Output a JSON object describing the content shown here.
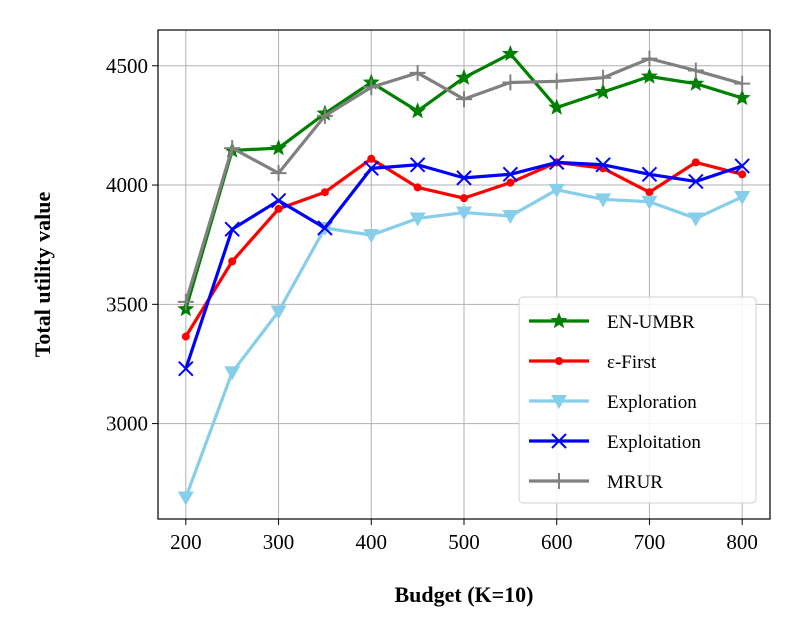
{
  "chart_data": {
    "type": "line",
    "title": "",
    "xlabel": "Budget (K=10)",
    "ylabel": "Total utility value",
    "xlim": [
      170,
      830
    ],
    "ylim": [
      2600,
      4650
    ],
    "xticks": [
      200,
      300,
      400,
      500,
      600,
      700,
      800
    ],
    "yticks": [
      3000,
      3500,
      4000,
      4500
    ],
    "grid": true,
    "legend_position": "lower-right",
    "x": [
      200,
      250,
      300,
      350,
      400,
      450,
      500,
      550,
      600,
      650,
      700,
      750,
      800
    ],
    "series": [
      {
        "name": "EN-UMBR",
        "color": "#008000",
        "marker": "star",
        "values": [
          3480,
          4145,
          4155,
          4300,
          4430,
          4310,
          4450,
          4550,
          4325,
          4390,
          4455,
          4425,
          4365
        ]
      },
      {
        "name": "ε-First",
        "color": "#ff0000",
        "marker": "dot",
        "values": [
          3365,
          3680,
          3900,
          3970,
          4110,
          3990,
          3945,
          4010,
          4095,
          4070,
          3970,
          4095,
          4045
        ]
      },
      {
        "name": "Exploration",
        "color": "#87ceeb",
        "marker": "triangle-down",
        "values": [
          2690,
          3215,
          3470,
          3820,
          3790,
          3860,
          3885,
          3870,
          3980,
          3940,
          3930,
          3860,
          3950
        ]
      },
      {
        "name": "Exploitation",
        "color": "#0000ff",
        "marker": "x",
        "values": [
          3230,
          3815,
          3935,
          3820,
          4070,
          4085,
          4030,
          4045,
          4095,
          4085,
          4045,
          4015,
          4080
        ]
      },
      {
        "name": "MRUR",
        "color": "#808080",
        "marker": "plus",
        "values": [
          3510,
          4155,
          4050,
          4290,
          4410,
          4470,
          4360,
          4430,
          4435,
          4450,
          4530,
          4480,
          4425
        ]
      }
    ]
  }
}
